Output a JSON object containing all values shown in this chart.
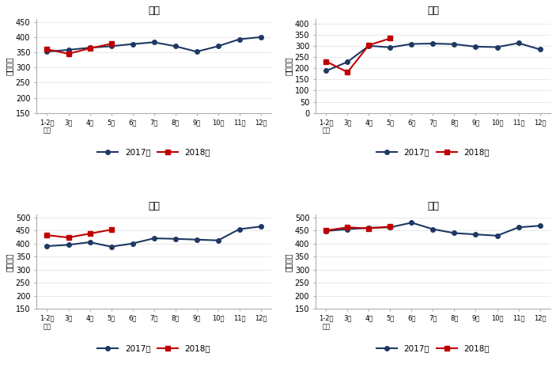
{
  "x_labels": [
    "1-2月\n平均",
    "3月",
    "4月",
    "5月",
    "6月",
    "7月",
    "8月",
    "9月",
    "10月",
    "11月",
    "12月"
  ],
  "subplots": [
    {
      "title": "化工",
      "ylabel": "万千瓦时",
      "ylim": [
        150,
        460
      ],
      "yticks": [
        150,
        200,
        250,
        300,
        350,
        400,
        450
      ],
      "data_2017": [
        352,
        358,
        365,
        370,
        377,
        383,
        370,
        352,
        370,
        393,
        400
      ],
      "data_2018": [
        360,
        345,
        363,
        378,
        null,
        null,
        null,
        null,
        null,
        null,
        null
      ]
    },
    {
      "title": "建材",
      "ylabel": "万千瓦时",
      "ylim": [
        0,
        420
      ],
      "yticks": [
        0,
        50,
        100,
        150,
        200,
        250,
        300,
        350,
        400
      ],
      "data_2017": [
        188,
        228,
        300,
        293,
        308,
        310,
        307,
        296,
        294,
        312,
        284
      ],
      "data_2018": [
        230,
        182,
        303,
        333,
        null,
        null,
        null,
        null,
        null,
        null,
        null
      ]
    },
    {
      "title": "黑色",
      "ylabel": "万千瓦时",
      "ylim": [
        150,
        510
      ],
      "yticks": [
        150,
        200,
        250,
        300,
        350,
        400,
        450,
        500
      ],
      "data_2017": [
        390,
        395,
        405,
        388,
        400,
        420,
        418,
        415,
        412,
        455,
        465
      ],
      "data_2018": [
        432,
        423,
        438,
        453,
        null,
        null,
        null,
        null,
        null,
        null,
        null
      ]
    },
    {
      "title": "有色",
      "ylabel": "万千瓦时",
      "ylim": [
        150,
        510
      ],
      "yticks": [
        150,
        200,
        250,
        300,
        350,
        400,
        450,
        500
      ],
      "data_2017": [
        448,
        455,
        460,
        462,
        480,
        455,
        440,
        435,
        430,
        462,
        468
      ],
      "data_2018": [
        450,
        462,
        458,
        465,
        null,
        null,
        null,
        null,
        null,
        null,
        null
      ]
    }
  ],
  "color_2017": "#1f3864",
  "color_2018": "#c00000",
  "legend_labels": [
    "2017年",
    "2018年"
  ],
  "line_width": 1.5,
  "marker_size": 4,
  "fig_width": 7.03,
  "fig_height": 4.7,
  "dpi": 100
}
